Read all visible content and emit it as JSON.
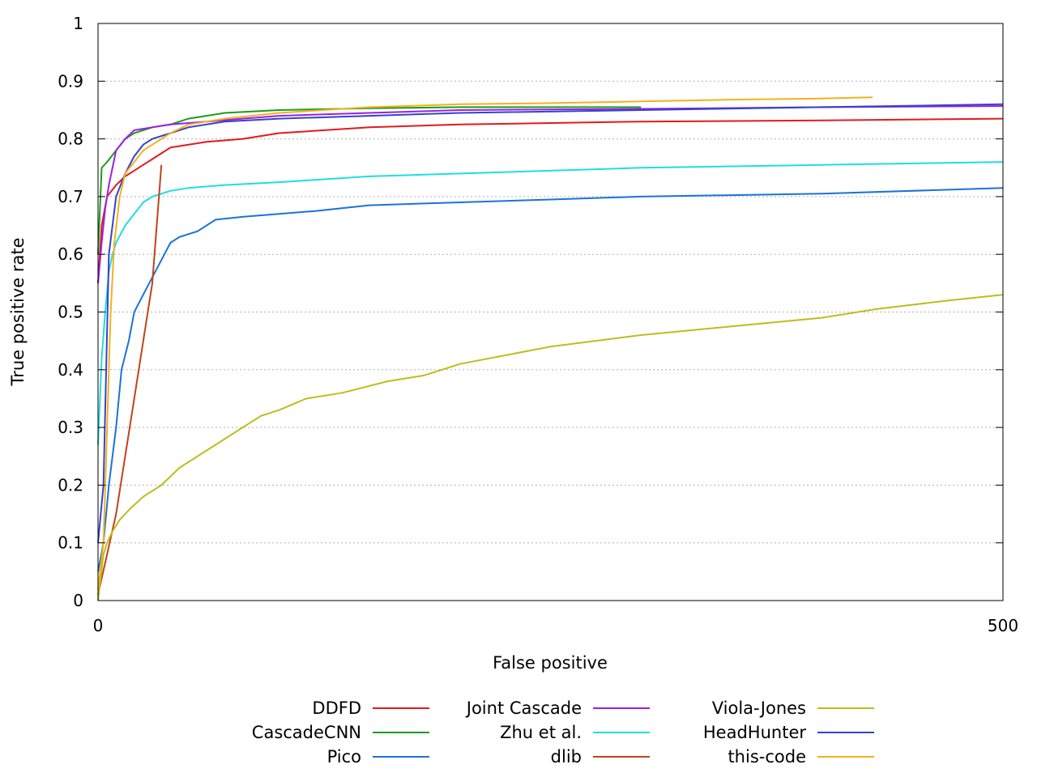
{
  "chart_data": {
    "type": "line",
    "title": "",
    "xlabel": "False positive",
    "ylabel": "True positive rate",
    "xlim": [
      0,
      500
    ],
    "ylim": [
      0,
      1
    ],
    "xticks": [
      "0",
      "500"
    ],
    "yticks": [
      "0",
      "0.1",
      "0.2",
      "0.3",
      "0.4",
      "0.5",
      "0.6",
      "0.7",
      "0.8",
      "0.9",
      "1"
    ],
    "grid": "horizontal-dotted",
    "legend_placement": "bottom-center",
    "series": [
      {
        "name": "DDFD",
        "color": "#e31a1c",
        "points": [
          [
            0,
            0.55
          ],
          [
            2,
            0.65
          ],
          [
            5,
            0.7
          ],
          [
            10,
            0.72
          ],
          [
            15,
            0.735
          ],
          [
            20,
            0.745
          ],
          [
            25,
            0.755
          ],
          [
            30,
            0.765
          ],
          [
            35,
            0.775
          ],
          [
            40,
            0.785
          ],
          [
            60,
            0.795
          ],
          [
            80,
            0.8
          ],
          [
            100,
            0.81
          ],
          [
            150,
            0.82
          ],
          [
            200,
            0.825
          ],
          [
            300,
            0.83
          ],
          [
            400,
            0.832
          ],
          [
            500,
            0.835
          ]
        ]
      },
      {
        "name": "CascadeCNN",
        "color": "#1a9e1a",
        "points": [
          [
            0,
            0.6
          ],
          [
            2,
            0.75
          ],
          [
            5,
            0.76
          ],
          [
            10,
            0.78
          ],
          [
            15,
            0.8
          ],
          [
            20,
            0.81
          ],
          [
            30,
            0.82
          ],
          [
            40,
            0.825
          ],
          [
            50,
            0.835
          ],
          [
            70,
            0.845
          ],
          [
            100,
            0.85
          ],
          [
            150,
            0.853
          ],
          [
            200,
            0.855
          ],
          [
            300,
            0.855
          ]
        ]
      },
      {
        "name": "Pico",
        "color": "#1a73d9",
        "points": [
          [
            0,
            0.05
          ],
          [
            3,
            0.1
          ],
          [
            6,
            0.2
          ],
          [
            10,
            0.3
          ],
          [
            13,
            0.4
          ],
          [
            17,
            0.45
          ],
          [
            20,
            0.5
          ],
          [
            25,
            0.53
          ],
          [
            30,
            0.56
          ],
          [
            35,
            0.59
          ],
          [
            40,
            0.62
          ],
          [
            45,
            0.63
          ],
          [
            55,
            0.64
          ],
          [
            65,
            0.66
          ],
          [
            80,
            0.665
          ],
          [
            100,
            0.67
          ],
          [
            120,
            0.675
          ],
          [
            150,
            0.685
          ],
          [
            200,
            0.69
          ],
          [
            250,
            0.695
          ],
          [
            300,
            0.7
          ],
          [
            400,
            0.705
          ],
          [
            500,
            0.715
          ]
        ]
      },
      {
        "name": "Joint Cascade",
        "color": "#9b1fe8",
        "points": [
          [
            0,
            0.55
          ],
          [
            2,
            0.62
          ],
          [
            4,
            0.68
          ],
          [
            6,
            0.72
          ],
          [
            10,
            0.78
          ],
          [
            15,
            0.8
          ],
          [
            20,
            0.815
          ],
          [
            30,
            0.82
          ],
          [
            40,
            0.825
          ],
          [
            60,
            0.83
          ],
          [
            80,
            0.835
          ],
          [
            100,
            0.84
          ],
          [
            150,
            0.845
          ],
          [
            200,
            0.85
          ],
          [
            300,
            0.852
          ],
          [
            400,
            0.855
          ],
          [
            500,
            0.857
          ]
        ]
      },
      {
        "name": "Zhu et al.",
        "color": "#1fdede",
        "points": [
          [
            0,
            0.27
          ],
          [
            2,
            0.42
          ],
          [
            4,
            0.5
          ],
          [
            6,
            0.57
          ],
          [
            8,
            0.6
          ],
          [
            10,
            0.62
          ],
          [
            15,
            0.65
          ],
          [
            20,
            0.67
          ],
          [
            25,
            0.69
          ],
          [
            30,
            0.7
          ],
          [
            40,
            0.71
          ],
          [
            50,
            0.715
          ],
          [
            70,
            0.72
          ],
          [
            100,
            0.725
          ],
          [
            150,
            0.735
          ],
          [
            200,
            0.74
          ],
          [
            300,
            0.75
          ],
          [
            400,
            0.755
          ],
          [
            500,
            0.76
          ]
        ]
      },
      {
        "name": "dlib",
        "color": "#c0431b",
        "points": [
          [
            0,
            0.01
          ],
          [
            10,
            0.15
          ],
          [
            20,
            0.35
          ],
          [
            30,
            0.55
          ],
          [
            35,
            0.755
          ]
        ]
      },
      {
        "name": "Viola-Jones",
        "color": "#bdbd1c",
        "points": [
          [
            0,
            0.0
          ],
          [
            3,
            0.08
          ],
          [
            5,
            0.1
          ],
          [
            8,
            0.12
          ],
          [
            12,
            0.14
          ],
          [
            18,
            0.16
          ],
          [
            25,
            0.18
          ],
          [
            35,
            0.2
          ],
          [
            45,
            0.23
          ],
          [
            60,
            0.26
          ],
          [
            75,
            0.29
          ],
          [
            90,
            0.32
          ],
          [
            100,
            0.33
          ],
          [
            115,
            0.35
          ],
          [
            135,
            0.36
          ],
          [
            160,
            0.38
          ],
          [
            180,
            0.39
          ],
          [
            200,
            0.41
          ],
          [
            250,
            0.44
          ],
          [
            300,
            0.46
          ],
          [
            350,
            0.475
          ],
          [
            400,
            0.49
          ],
          [
            430,
            0.505
          ],
          [
            470,
            0.52
          ],
          [
            500,
            0.53
          ]
        ]
      },
      {
        "name": "HeadHunter",
        "color": "#3344cc",
        "points": [
          [
            0,
            0.1
          ],
          [
            3,
            0.2
          ],
          [
            6,
            0.6
          ],
          [
            10,
            0.7
          ],
          [
            15,
            0.74
          ],
          [
            20,
            0.77
          ],
          [
            25,
            0.79
          ],
          [
            30,
            0.8
          ],
          [
            40,
            0.81
          ],
          [
            50,
            0.82
          ],
          [
            70,
            0.83
          ],
          [
            100,
            0.835
          ],
          [
            150,
            0.84
          ],
          [
            200,
            0.845
          ],
          [
            300,
            0.85
          ],
          [
            400,
            0.855
          ],
          [
            500,
            0.86
          ]
        ]
      },
      {
        "name": "this-code",
        "color": "#f5b11b",
        "points": [
          [
            0,
            0.02
          ],
          [
            3,
            0.1
          ],
          [
            5,
            0.3
          ],
          [
            7,
            0.5
          ],
          [
            9,
            0.62
          ],
          [
            12,
            0.7
          ],
          [
            15,
            0.74
          ],
          [
            20,
            0.76
          ],
          [
            25,
            0.78
          ],
          [
            30,
            0.79
          ],
          [
            40,
            0.81
          ],
          [
            50,
            0.825
          ],
          [
            70,
            0.835
          ],
          [
            100,
            0.845
          ],
          [
            150,
            0.855
          ],
          [
            200,
            0.86
          ],
          [
            250,
            0.862
          ],
          [
            300,
            0.865
          ],
          [
            350,
            0.868
          ],
          [
            400,
            0.87
          ],
          [
            428,
            0.872
          ]
        ]
      }
    ]
  }
}
